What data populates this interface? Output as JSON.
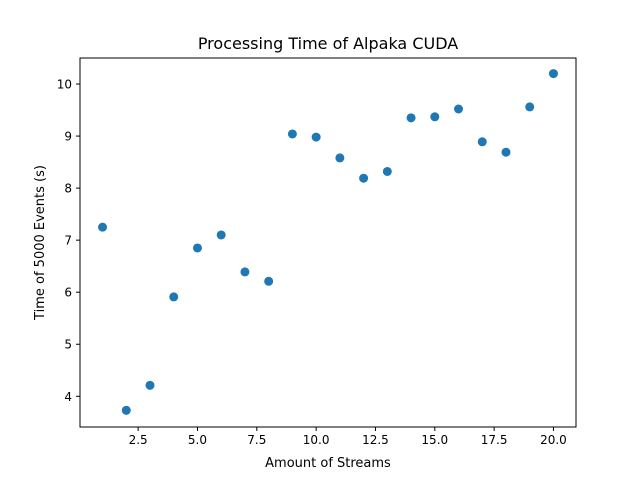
{
  "chart_data": {
    "type": "scatter",
    "title": "Processing Time of Alpaka CUDA",
    "xlabel": "Amount of Streams",
    "ylabel": "Time of 5000 Events (s)",
    "xlim": [
      0.05,
      20.95
    ],
    "ylim": [
      3.41,
      10.5
    ],
    "xticks": [
      2.5,
      5.0,
      7.5,
      10.0,
      12.5,
      15.0,
      17.5,
      20.0
    ],
    "xtick_labels": [
      "2.5",
      "5.0",
      "7.5",
      "10.0",
      "12.5",
      "15.0",
      "17.5",
      "20.0"
    ],
    "yticks": [
      4,
      5,
      6,
      7,
      8,
      9,
      10
    ],
    "ytick_labels": [
      "4",
      "5",
      "6",
      "7",
      "8",
      "9",
      "10"
    ],
    "grid": false,
    "marker_color": "#1f77b4",
    "series": [
      {
        "x": [
          1,
          2,
          3,
          4,
          5,
          6,
          7,
          8,
          9,
          10,
          11,
          12,
          13,
          14,
          15,
          16,
          17,
          18,
          19,
          20
        ],
        "y": [
          7.25,
          3.73,
          4.21,
          5.91,
          6.85,
          7.1,
          6.39,
          6.21,
          9.04,
          8.98,
          8.58,
          8.19,
          8.32,
          9.35,
          9.37,
          9.52,
          8.89,
          8.69,
          9.56,
          10.2
        ]
      }
    ]
  }
}
